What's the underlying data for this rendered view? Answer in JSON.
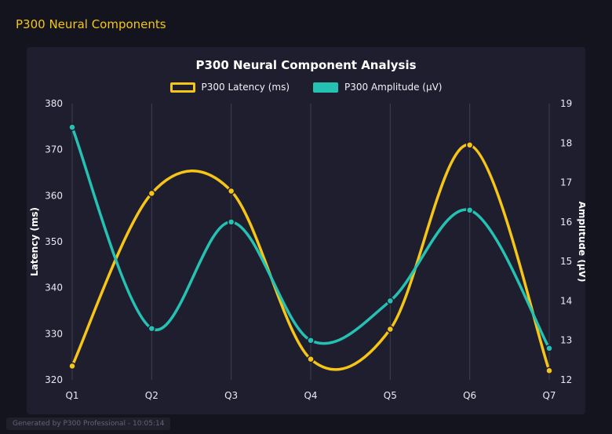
{
  "page": {
    "heading": "P300 Neural Components",
    "footer": "Generated by P300 Professional - 10:05:14"
  },
  "chart_data": {
    "type": "line",
    "title": "P300 Neural Component Analysis",
    "categories": [
      "Q1",
      "Q2",
      "Q3",
      "Q4",
      "Q5",
      "Q6",
      "Q7"
    ],
    "series": [
      {
        "name": "P300 Latency (ms)",
        "axis": "left",
        "color": "#f5c518",
        "values": [
          323,
          360.5,
          361,
          324.5,
          331,
          371,
          322
        ]
      },
      {
        "name": "P300 Amplitude (µV)",
        "axis": "right",
        "color": "#25c2b4",
        "values": [
          18.4,
          13.3,
          16.0,
          13.0,
          14.0,
          16.3,
          12.8
        ]
      }
    ],
    "left_axis": {
      "label": "Latency (ms)",
      "min": 320,
      "max": 380,
      "step": 10
    },
    "right_axis": {
      "label": "Amplitude (µV)",
      "min": 12,
      "max": 19,
      "step": 1
    },
    "grid": "vertical",
    "legend_position": "top",
    "colors": {
      "background": "#14141f",
      "panel": "#1e1e2f",
      "gridline": "rgba(255,255,255,0.14)",
      "tick_text": "#e9e9f2",
      "accent_yellow": "#f5c518",
      "accent_teal": "#25c2b4"
    }
  }
}
